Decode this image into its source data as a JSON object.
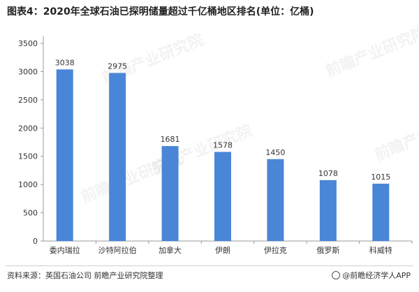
{
  "title": "图表4：2020年全球石油已探明储量超过千亿桶地区排名(单位：亿桶)",
  "source": "资料来源：英国石油公司 前瞻产业研究院整理",
  "brand": "@前瞻经济学人APP",
  "watermark": "前瞻产业研究院",
  "colors": {
    "bar": "#4a86d8",
    "axis": "#999999",
    "text": "#333333"
  },
  "chart_data": {
    "type": "bar",
    "categories": [
      "委内瑞拉",
      "沙特阿拉伯",
      "加拿大",
      "伊朗",
      "伊拉克",
      "俄罗斯",
      "科威特"
    ],
    "values": [
      3038,
      2975,
      1681,
      1578,
      1450,
      1078,
      1015
    ],
    "yticks": [
      0,
      500,
      1000,
      1500,
      2000,
      2500,
      3000,
      3500
    ],
    "ylim": [
      0,
      3500
    ],
    "grid": false,
    "legend": "none"
  }
}
